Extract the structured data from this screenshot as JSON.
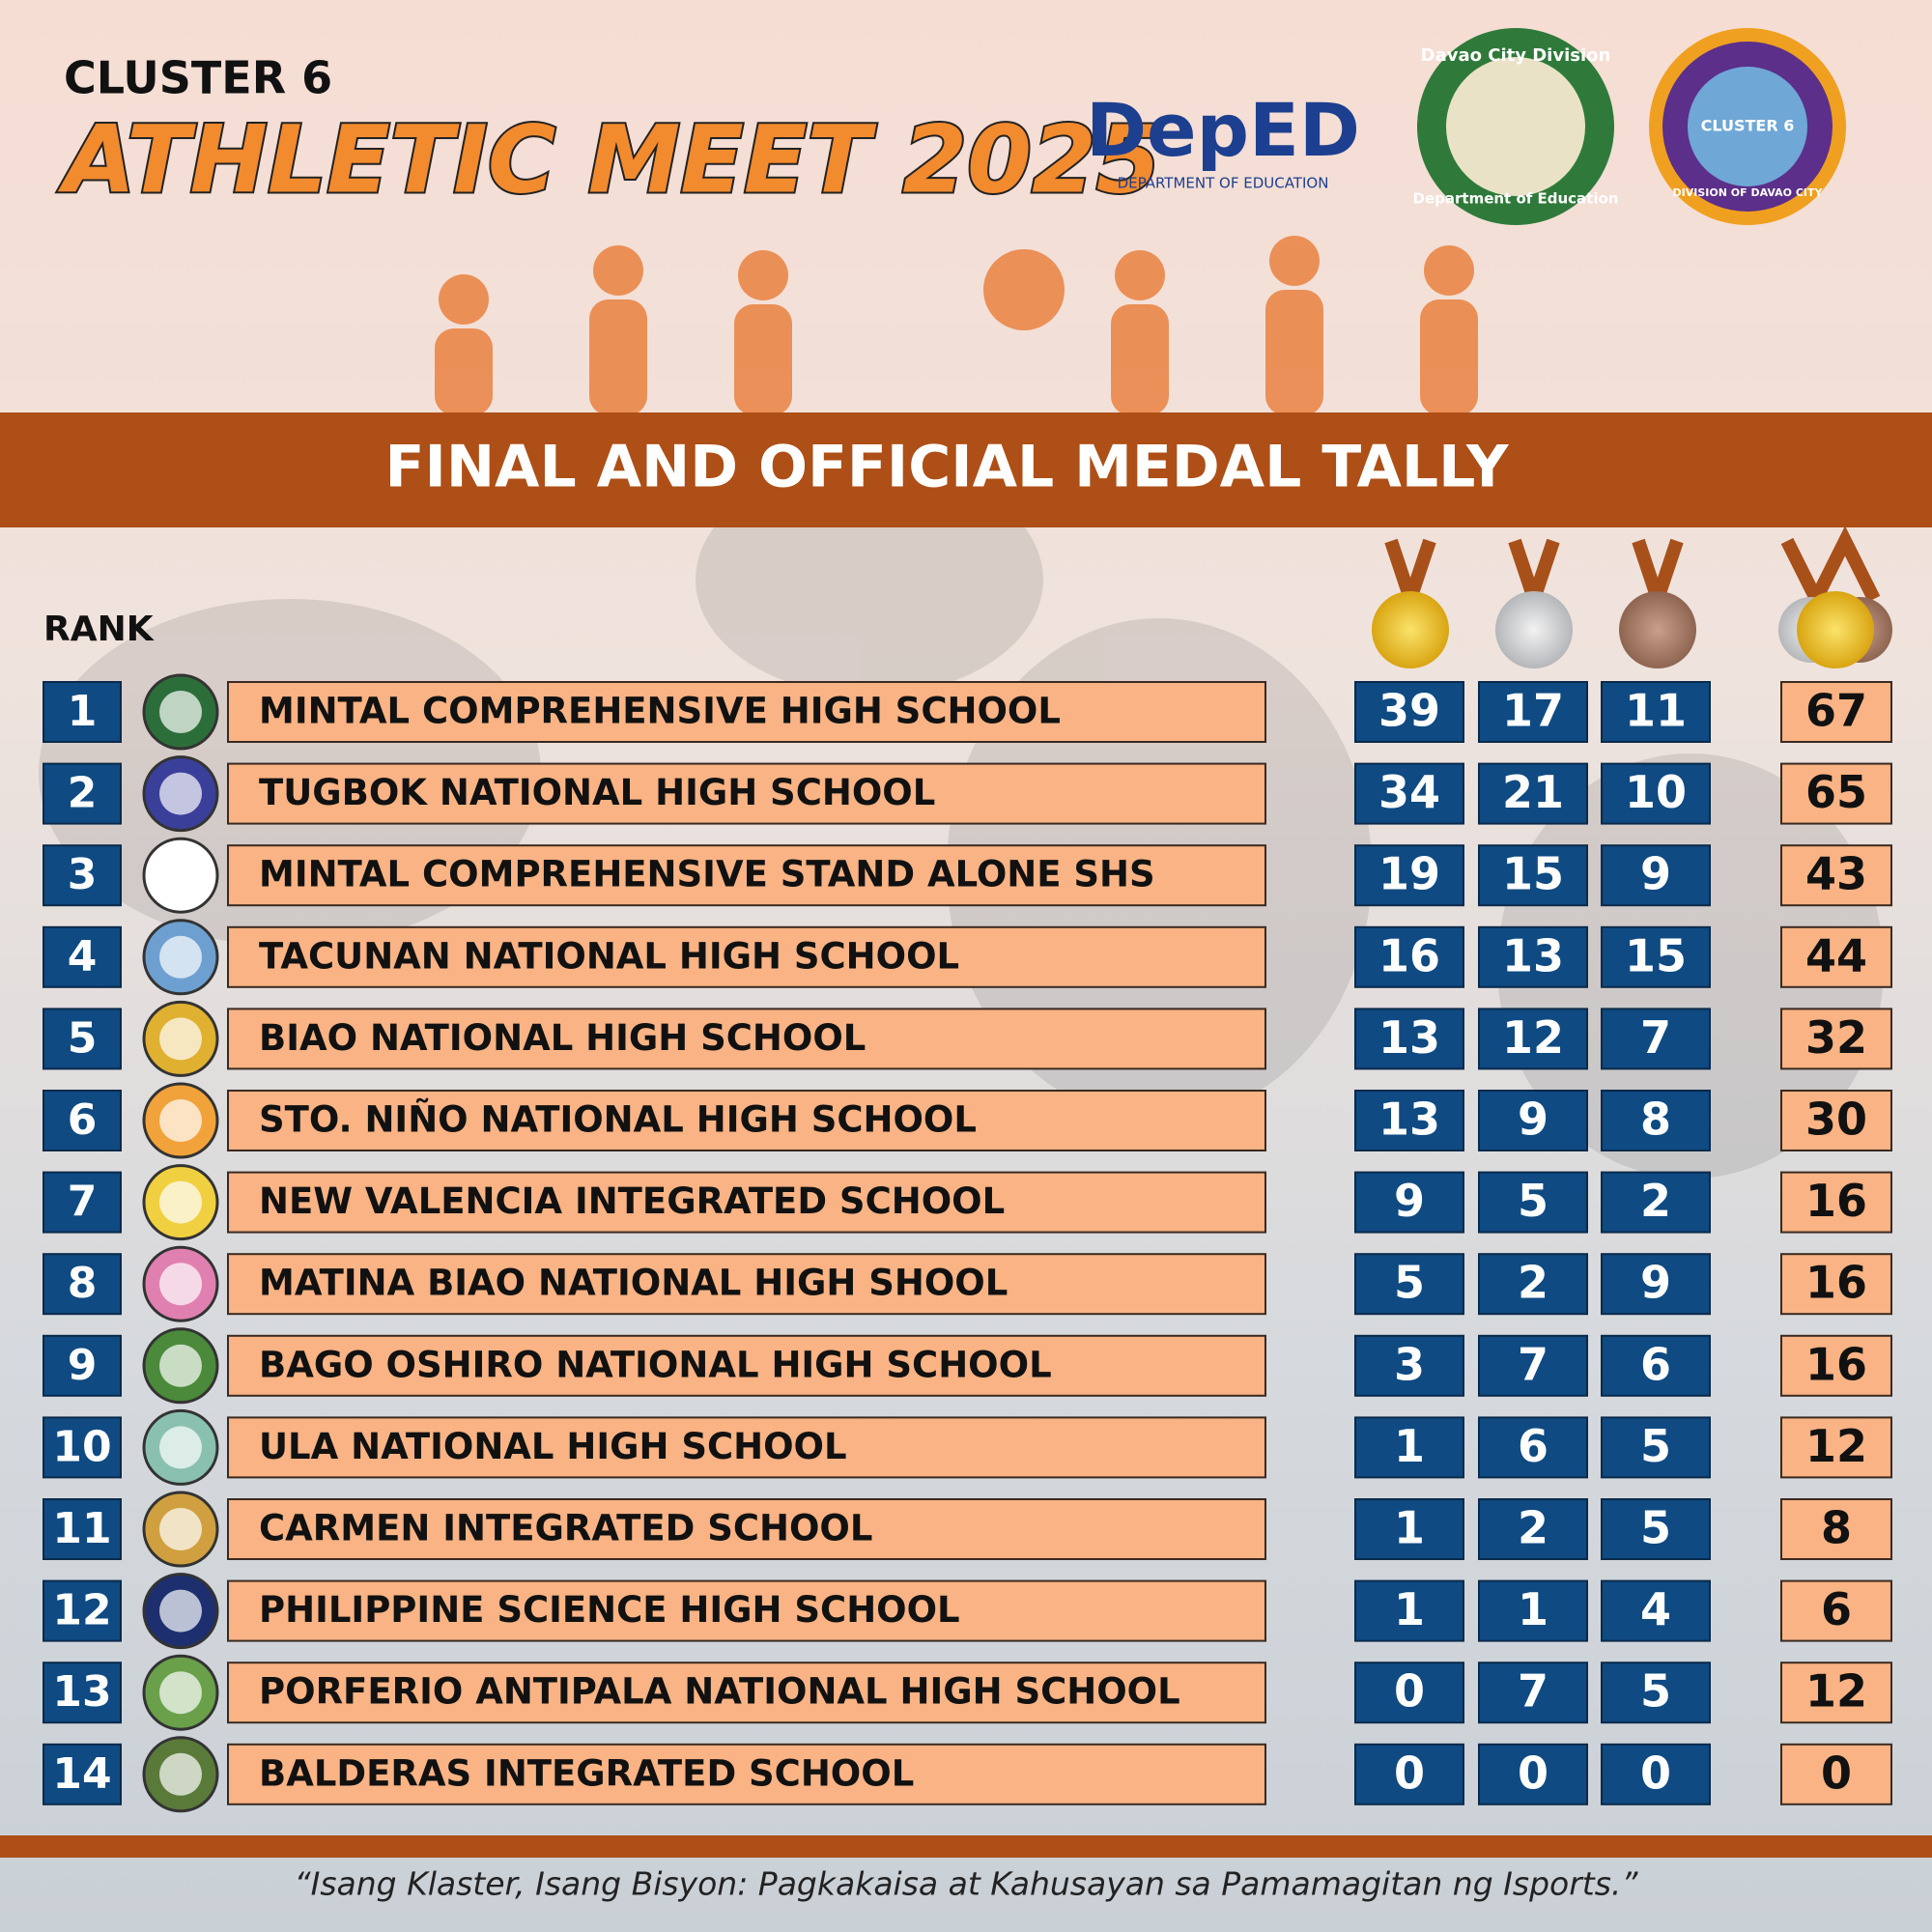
{
  "header": {
    "cluster": "CLUSTER 6",
    "title": "ATHLETIC MEET 2025",
    "logos": [
      {
        "label": "DepED",
        "sub": "DEPARTMENT OF EDUCATION"
      },
      {
        "label": "Davao City Division",
        "sub": "Department of Education"
      },
      {
        "label": "CLUSTER 6",
        "sub": "DIVISION OF DAVAO CITY"
      }
    ]
  },
  "banner": "FINAL AND OFFICIAL MEDAL TALLY",
  "table": {
    "rank_header": "RANK",
    "rows": [
      [
        1,
        "MINTAL COMPREHENSIVE HIGH SCHOOL",
        39,
        17,
        11,
        67
      ],
      [
        2,
        "TUGBOK NATIONAL HIGH SCHOOL",
        34,
        21,
        10,
        65
      ],
      [
        3,
        "MINTAL COMPREHENSIVE STAND ALONE SHS",
        19,
        15,
        9,
        43
      ],
      [
        4,
        "TACUNAN NATIONAL HIGH SCHOOL",
        16,
        13,
        15,
        44
      ],
      [
        5,
        "BIAO NATIONAL HIGH SCHOOL",
        13,
        12,
        7,
        32
      ],
      [
        6,
        "STO. NIÑO NATIONAL HIGH SCHOOL",
        13,
        9,
        8,
        30
      ],
      [
        7,
        "NEW VALENCIA INTEGRATED SCHOOL",
        9,
        5,
        2,
        16
      ],
      [
        8,
        "MATINA BIAO NATIONAL HIGH SHOOL",
        5,
        2,
        9,
        16
      ],
      [
        9,
        "BAGO OSHIRO NATIONAL HIGH SCHOOL",
        3,
        7,
        6,
        16
      ],
      [
        10,
        "ULA NATIONAL HIGH SCHOOL",
        1,
        6,
        5,
        12
      ],
      [
        11,
        "CARMEN INTEGRATED SCHOOL",
        1,
        2,
        5,
        8
      ],
      [
        12,
        "PHILIPPINE SCIENCE HIGH SCHOOL",
        1,
        1,
        4,
        6
      ],
      [
        13,
        "PORFERIO ANTIPALA NATIONAL HIGH SCHOOL",
        0,
        7,
        5,
        12
      ],
      [
        14,
        "BALDERAS INTEGRATED SCHOOL",
        0,
        0,
        0,
        0
      ]
    ]
  },
  "footer": "“Isang Klaster, Isang Bisyon:  Pagkakaisa at Kahusayan sa Pamamagitan ng Isports.”"
}
